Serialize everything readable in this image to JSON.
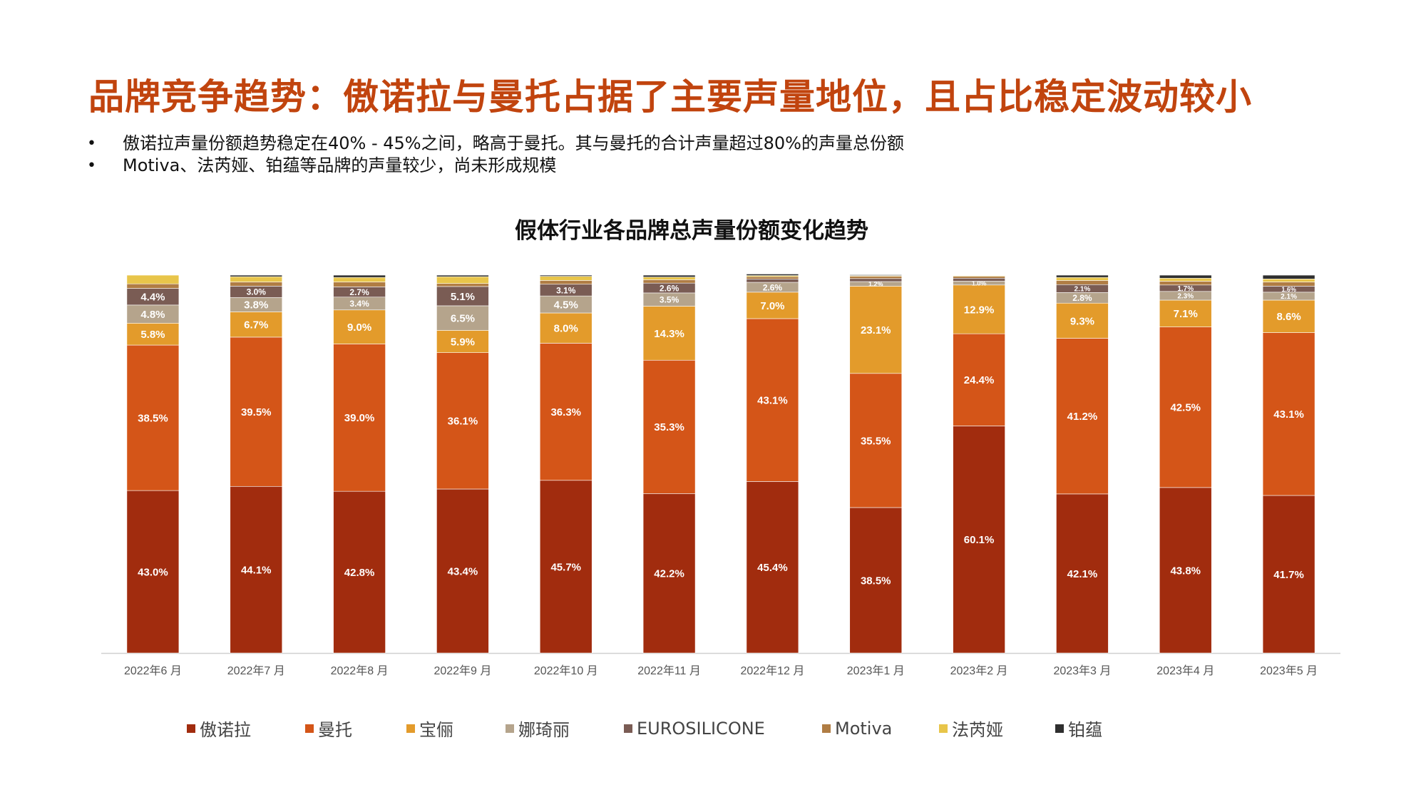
{
  "slide": {
    "title": "品牌竞争趋势：傲诺拉与曼托占据了主要声量地位，且占比稳定波动较小",
    "bullets": [
      "傲诺拉声量份额趋势稳定在40% - 45%之间，略高于曼托。其与曼托的合计声量超过80%的声量总份额",
      "Motiva、法芮娅、铂蕴等品牌的声量较少，尚未形成规模"
    ]
  },
  "chart_data": {
    "type": "bar",
    "stacked": true,
    "percent": true,
    "title": "假体行业各品牌总声量份额变化趋势",
    "xlabel": "",
    "ylabel": "",
    "ylim": [
      0,
      100
    ],
    "grid": false,
    "legend_position": "bottom",
    "categories": [
      "2022年6 月",
      "2022年7 月",
      "2022年8 月",
      "2022年9 月",
      "2022年10 月",
      "2022年11 月",
      "2022年12 月",
      "2023年1 月",
      "2023年2 月",
      "2023年3 月",
      "2023年4 月",
      "2023年5 月"
    ],
    "series": [
      {
        "name": "傲诺拉",
        "color": "#a12c0e",
        "values": [
          43.0,
          44.1,
          42.8,
          43.4,
          45.7,
          42.2,
          45.4,
          38.5,
          60.1,
          42.1,
          43.8,
          41.7
        ],
        "labels": [
          "43.0%",
          "44.1%",
          "42.8%",
          "43.4%",
          "45.7%",
          "42.2%",
          "45.4%",
          "38.5%",
          "60.1%",
          "42.1%",
          "43.8%",
          "41.7%"
        ]
      },
      {
        "name": "曼托",
        "color": "#d45518",
        "values": [
          38.5,
          39.5,
          39.0,
          36.1,
          36.3,
          35.3,
          43.1,
          35.5,
          24.4,
          41.2,
          42.5,
          43.1
        ],
        "labels": [
          "38.5%",
          "39.5%",
          "39.0%",
          "36.1%",
          "36.3%",
          "35.3%",
          "43.1%",
          "35.5%",
          "24.4%",
          "41.2%",
          "42.5%",
          "43.1%"
        ]
      },
      {
        "name": "宝俪",
        "color": "#e39b2b",
        "values": [
          5.8,
          6.7,
          9.0,
          5.9,
          8.0,
          14.3,
          7.0,
          23.1,
          12.9,
          9.3,
          7.1,
          8.6
        ],
        "labels": [
          "5.8%",
          "6.7%",
          "9.0%",
          "5.9%",
          "8.0%",
          "14.3%",
          "7.0%",
          "23.1%",
          "12.9%",
          "9.3%",
          "7.1%",
          "8.6%"
        ]
      },
      {
        "name": "娜琦丽",
        "color": "#b5a48c",
        "values": [
          4.8,
          3.8,
          3.4,
          6.5,
          4.5,
          3.5,
          2.6,
          1.2,
          1.0,
          2.8,
          2.3,
          2.1
        ],
        "labels": [
          "4.8%",
          "3.8%",
          "3.4%",
          "6.5%",
          "4.5%",
          "3.5%",
          "2.6%",
          "1.2%",
          "1.0%",
          "2.8%",
          "2.3%",
          "2.1%"
        ]
      },
      {
        "name": "EUROSILICONE",
        "color": "#7a5c54",
        "values": [
          4.4,
          3.0,
          2.7,
          5.1,
          3.1,
          2.6,
          0.9,
          0.8,
          0.8,
          2.1,
          1.7,
          1.6
        ],
        "labels": [
          "4.4%",
          "3.0%",
          "2.7%",
          "5.1%",
          "3.1%",
          "2.6%",
          "",
          "",
          "",
          "2.1%",
          "1.7%",
          "1.6%"
        ]
      },
      {
        "name": "Motiva",
        "color": "#b07d44",
        "values": [
          1.2,
          1.1,
          1.3,
          0.8,
          1.0,
          0.9,
          0.6,
          0.6,
          0.5,
          1.1,
          1.0,
          1.1
        ],
        "labels": [
          "",
          "",
          "",
          "",
          "",
          "",
          "",
          "",
          "",
          "",
          "",
          ""
        ]
      },
      {
        "name": "法芮娅",
        "color": "#e8c54a",
        "values": [
          2.3,
          1.4,
          1.2,
          1.8,
          1.1,
          0.7,
          0.3,
          0.2,
          0.2,
          0.8,
          0.8,
          0.8
        ],
        "labels": [
          "",
          "",
          "",
          "",
          "",
          "",
          "",
          "",
          "",
          "",
          "",
          ""
        ]
      },
      {
        "name": "铂蕴",
        "color": "#2f2f2f",
        "values": [
          0.0,
          0.4,
          0.6,
          0.4,
          0.3,
          0.5,
          0.4,
          0.2,
          0.1,
          0.6,
          0.8,
          1.0
        ],
        "labels": [
          "",
          "",
          "",
          "",
          "",
          "",
          "",
          "",
          "",
          "",
          "",
          ""
        ]
      }
    ]
  }
}
